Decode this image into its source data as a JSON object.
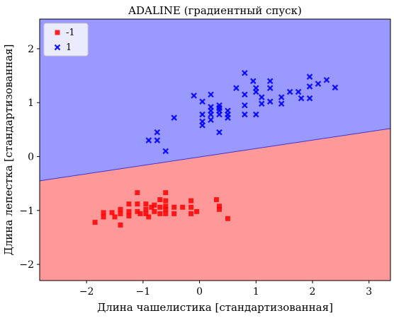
{
  "chart_data": {
    "type": "scatter",
    "title": "ADALINE (градиентный спуск)",
    "xlabel": "Длина чашелистика [стандартизованная]",
    "ylabel": "Длина лепестка [стандартизованная]",
    "xlim": [
      -2.83,
      3.38
    ],
    "ylim": [
      -2.3,
      2.55
    ],
    "xticks": [
      -2,
      -1,
      0,
      1,
      2,
      3
    ],
    "yticks": [
      -2,
      -1,
      0,
      1,
      2
    ],
    "xtick_labels": [
      "−2",
      "−1",
      "0",
      "1",
      "2",
      "3"
    ],
    "ytick_labels": [
      "−2",
      "−1",
      "0",
      "1",
      "2"
    ],
    "legend_position": "top-left",
    "grid": false,
    "decision_boundary": {
      "x": [
        -2.83,
        3.38
      ],
      "y": [
        -0.45,
        0.52
      ]
    },
    "regions": [
      {
        "class": "-1",
        "side": "below",
        "color": "#ff9999"
      },
      {
        "class": "1",
        "side": "above",
        "color": "#9999ff"
      }
    ],
    "series": [
      {
        "name": "-1",
        "marker": "square",
        "color": "#ff0000",
        "points": [
          [
            -1.85,
            -1.22
          ],
          [
            -1.7,
            -1.04
          ],
          [
            -1.7,
            -1.12
          ],
          [
            -1.55,
            -1.04
          ],
          [
            -1.5,
            -1.12
          ],
          [
            -1.4,
            -1.27
          ],
          [
            -1.4,
            -0.98
          ],
          [
            -1.4,
            -1.06
          ],
          [
            -1.25,
            -0.88
          ],
          [
            -1.25,
            -1.02
          ],
          [
            -1.25,
            -1.1
          ],
          [
            -1.1,
            -0.67
          ],
          [
            -1.1,
            -0.88
          ],
          [
            -1.1,
            -1.02
          ],
          [
            -1.05,
            -1.06
          ],
          [
            -0.95,
            -0.88
          ],
          [
            -0.95,
            -0.98
          ],
          [
            -0.95,
            -1.06
          ],
          [
            -0.9,
            -1.12
          ],
          [
            -0.85,
            -0.94
          ],
          [
            -0.8,
            -0.9
          ],
          [
            -0.8,
            -1.02
          ],
          [
            -0.7,
            -0.8
          ],
          [
            -0.7,
            -0.94
          ],
          [
            -0.7,
            -1.06
          ],
          [
            -0.6,
            -0.67
          ],
          [
            -0.6,
            -0.82
          ],
          [
            -0.6,
            -0.92
          ],
          [
            -0.6,
            -0.98
          ],
          [
            -0.6,
            -1.06
          ],
          [
            -0.45,
            -0.94
          ],
          [
            -0.45,
            -1.06
          ],
          [
            -0.3,
            -0.94
          ],
          [
            -0.15,
            -0.82
          ],
          [
            -0.15,
            -0.94
          ],
          [
            -0.15,
            -1.06
          ],
          [
            -0.05,
            -1.02
          ],
          [
            0.3,
            -0.8
          ],
          [
            0.35,
            -0.92
          ],
          [
            0.35,
            -0.98
          ],
          [
            0.5,
            -1.15
          ]
        ]
      },
      {
        "name": "1",
        "marker": "x",
        "color": "#0000ff",
        "points": [
          [
            -0.9,
            0.3
          ],
          [
            -0.75,
            0.3
          ],
          [
            -0.75,
            0.45
          ],
          [
            -0.6,
            0.1
          ],
          [
            -0.45,
            0.72
          ],
          [
            -0.1,
            1.13
          ],
          [
            0.05,
            1.02
          ],
          [
            0.05,
            0.78
          ],
          [
            0.05,
            0.65
          ],
          [
            0.05,
            0.58
          ],
          [
            0.2,
            1.15
          ],
          [
            0.2,
            0.92
          ],
          [
            0.2,
            0.85
          ],
          [
            0.2,
            0.78
          ],
          [
            0.2,
            0.68
          ],
          [
            0.35,
            0.95
          ],
          [
            0.35,
            0.9
          ],
          [
            0.35,
            0.85
          ],
          [
            0.35,
            0.78
          ],
          [
            0.35,
            0.45
          ],
          [
            0.5,
            0.85
          ],
          [
            0.5,
            0.78
          ],
          [
            0.5,
            0.72
          ],
          [
            0.65,
            1.27
          ],
          [
            0.8,
            1.15
          ],
          [
            0.8,
            1.55
          ],
          [
            0.8,
            0.95
          ],
          [
            0.8,
            0.78
          ],
          [
            0.95,
            1.4
          ],
          [
            1.0,
            1.27
          ],
          [
            1.0,
            1.2
          ],
          [
            1.0,
            0.78
          ],
          [
            1.1,
            1.1
          ],
          [
            1.1,
            0.98
          ],
          [
            1.25,
            1.4
          ],
          [
            1.25,
            1.27
          ],
          [
            1.25,
            1.02
          ],
          [
            1.45,
            1.1
          ],
          [
            1.45,
            0.98
          ],
          [
            1.6,
            1.2
          ],
          [
            1.75,
            1.2
          ],
          [
            1.8,
            1.08
          ],
          [
            1.95,
            1.48
          ],
          [
            1.95,
            1.3
          ],
          [
            1.95,
            1.08
          ],
          [
            2.1,
            1.35
          ],
          [
            2.25,
            1.42
          ],
          [
            2.4,
            1.28
          ]
        ]
      }
    ]
  }
}
